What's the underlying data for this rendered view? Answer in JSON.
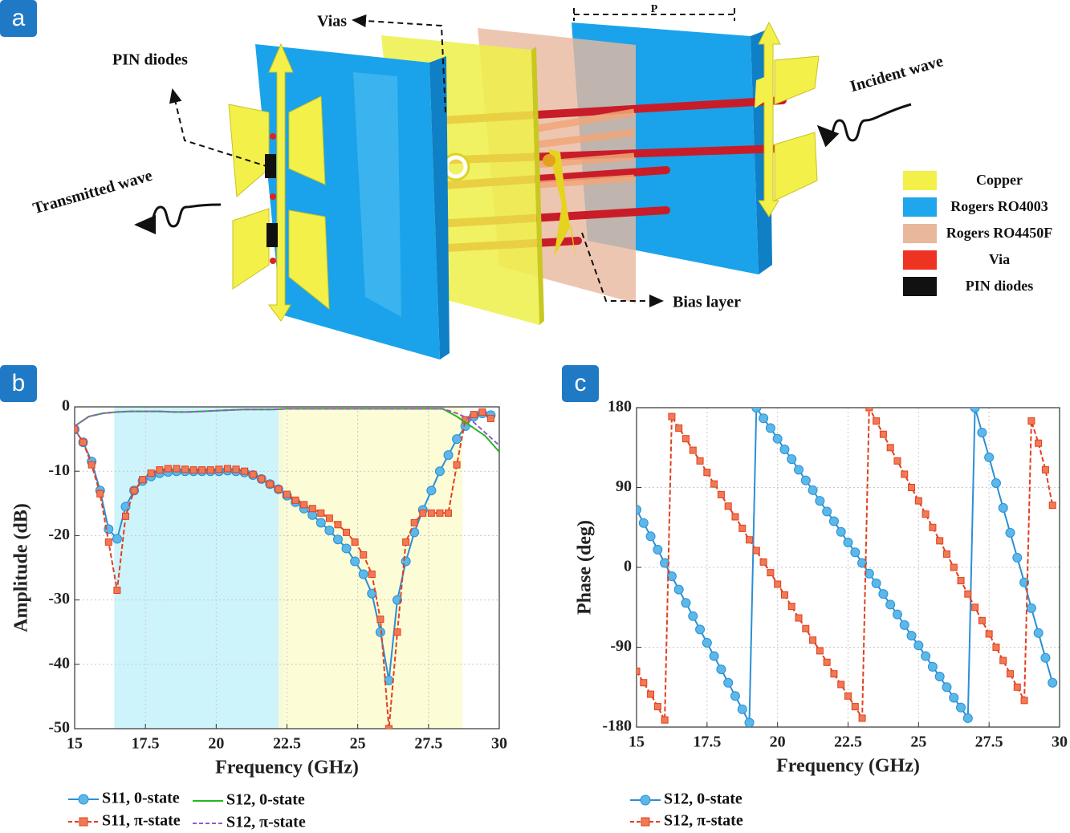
{
  "panel_labels": [
    "a",
    "b",
    "c"
  ],
  "diagram": {
    "labels": {
      "vias": "Vias",
      "period": "P",
      "pin_diodes": "PIN diodes",
      "incident": "Incident  wave",
      "transmitted": "Transmitted  wave",
      "bias": "Bias layer"
    },
    "legend": [
      {
        "label": "Copper",
        "color": "#f3f04a"
      },
      {
        "label": "Rogers RO4003",
        "color": "#1fa6ec"
      },
      {
        "label": "Rogers RO4450F",
        "color": "#e8b79c"
      },
      {
        "label": "Via",
        "color": "#ee3322"
      },
      {
        "label": "PIN diodes",
        "color": "#111111"
      }
    ]
  },
  "chart_data": [
    {
      "type": "line",
      "xlabel": "Frequency (GHz)",
      "ylabel": "Amplitude (dB)",
      "xlim": [
        15,
        30
      ],
      "ylim": [
        -50,
        0
      ],
      "xticks": [
        15,
        17.5,
        20,
        22.5,
        25,
        27.5,
        30
      ],
      "yticks": [
        -50,
        -40,
        -30,
        -20,
        -10,
        0
      ],
      "grid": true,
      "shaded_regions": [
        {
          "xlim": [
            16.4,
            22.4
          ],
          "color": "#c4f2fa"
        },
        {
          "xlim": [
            22.2,
            28.7
          ],
          "color": "#fbfbcf"
        }
      ],
      "series": [
        {
          "name": "S11, 0-state",
          "color": "#2b8fd6",
          "marker": "circle",
          "marker_fill": "#5bb8e8",
          "dash": false,
          "x": [
            15,
            15.3,
            15.6,
            15.9,
            16.2,
            16.5,
            16.8,
            17.1,
            17.4,
            17.7,
            18,
            18.3,
            18.6,
            18.9,
            19.2,
            19.5,
            19.8,
            20.1,
            20.4,
            20.7,
            21,
            21.3,
            21.6,
            21.9,
            22.2,
            22.5,
            22.8,
            23.1,
            23.4,
            23.7,
            24,
            24.3,
            24.6,
            24.9,
            25.2,
            25.5,
            25.8,
            26.1,
            26.4,
            26.7,
            27,
            27.3,
            27.6,
            27.9,
            28.2,
            28.5,
            28.8,
            29.1,
            29.4,
            29.7
          ],
          "values": [
            -3.5,
            -5.5,
            -8.5,
            -13,
            -19,
            -20.5,
            -15.5,
            -13,
            -11.5,
            -10.8,
            -10.3,
            -10.1,
            -10,
            -10,
            -10,
            -10,
            -10,
            -10,
            -9.9,
            -10,
            -10.2,
            -10.6,
            -11.2,
            -12,
            -12.8,
            -13.8,
            -14.8,
            -15.8,
            -16.8,
            -18,
            -19.2,
            -20.6,
            -22,
            -24,
            -26,
            -29,
            -35,
            -42.5,
            -30,
            -24,
            -19.5,
            -16,
            -13,
            -10,
            -7.5,
            -5,
            -3,
            -1.5,
            -1,
            -1.3
          ]
        },
        {
          "name": "S11, π-state",
          "color": "#e2401f",
          "marker": "square",
          "marker_fill": "#f07a55",
          "dash": true,
          "x": [
            15,
            15.3,
            15.6,
            15.9,
            16.2,
            16.5,
            16.8,
            17.1,
            17.4,
            17.7,
            18,
            18.3,
            18.6,
            18.9,
            19.2,
            19.5,
            19.8,
            20.1,
            20.4,
            20.7,
            21,
            21.3,
            21.6,
            21.9,
            22.2,
            22.5,
            22.8,
            23.1,
            23.4,
            23.7,
            24,
            24.3,
            24.6,
            24.9,
            25.2,
            25.5,
            25.8,
            26.1,
            26.4,
            26.7,
            27,
            27.3,
            27.6,
            27.9,
            28.2,
            28.5,
            28.8,
            29.1,
            29.4,
            29.7
          ],
          "values": [
            -3.5,
            -5.5,
            -9,
            -13.5,
            -21,
            -28.5,
            -17,
            -13,
            -11.3,
            -10.3,
            -9.8,
            -9.6,
            -9.6,
            -9.7,
            -9.8,
            -9.8,
            -9.8,
            -9.7,
            -9.6,
            -9.7,
            -10,
            -10.5,
            -11.2,
            -12,
            -12.8,
            -13.6,
            -14.5,
            -15.2,
            -15.8,
            -16.5,
            -17.3,
            -18.3,
            -19.5,
            -21,
            -23,
            -26,
            -33,
            -50,
            -35,
            -21,
            -18,
            -16.5,
            -16.5,
            -16.5,
            -16.5,
            -9,
            -2,
            -1.2,
            -0.8,
            -1.8
          ]
        },
        {
          "name": "S12, 0-state",
          "color": "#22b822",
          "marker": "none",
          "dash": false,
          "x": [
            15,
            15.5,
            16,
            16.5,
            17,
            17.5,
            18,
            18.5,
            19,
            19.5,
            20,
            20.5,
            21,
            21.5,
            22,
            22.5,
            23,
            23.5,
            24,
            24.5,
            25,
            25.5,
            26,
            26.5,
            27,
            27.5,
            28,
            28.5,
            29,
            29.5,
            30
          ],
          "values": [
            -3,
            -1.5,
            -1,
            -0.8,
            -0.7,
            -0.7,
            -0.7,
            -0.8,
            -0.8,
            -0.7,
            -0.6,
            -0.5,
            -0.4,
            -0.4,
            -0.4,
            -0.3,
            -0.3,
            -0.3,
            -0.3,
            -0.3,
            -0.3,
            -0.3,
            -0.3,
            -0.3,
            -0.3,
            -0.3,
            -0.3,
            -1.5,
            -3,
            -4.5,
            -7
          ]
        },
        {
          "name": "S12, π-state",
          "color": "#9a55c8",
          "marker": "none",
          "dash": true,
          "x": [
            15,
            15.5,
            16,
            16.5,
            17,
            17.5,
            18,
            18.5,
            19,
            19.5,
            20,
            20.5,
            21,
            21.5,
            22,
            22.5,
            23,
            23.5,
            24,
            24.5,
            25,
            25.5,
            26,
            26.5,
            27,
            27.5,
            28,
            28.5,
            29,
            29.5,
            30
          ],
          "values": [
            -3,
            -1.5,
            -1,
            -0.8,
            -0.7,
            -0.7,
            -0.7,
            -0.8,
            -0.8,
            -0.7,
            -0.6,
            -0.5,
            -0.4,
            -0.4,
            -0.4,
            -0.3,
            -0.3,
            -0.3,
            -0.3,
            -0.3,
            -0.3,
            -0.3,
            -0.3,
            -0.3,
            -0.3,
            -0.3,
            -0.3,
            -1,
            -2,
            -4,
            -6
          ]
        }
      ]
    },
    {
      "type": "line",
      "xlabel": "Frequency (GHz)",
      "ylabel": "Phase (deg)",
      "xlim": [
        15,
        30
      ],
      "ylim": [
        -180,
        180
      ],
      "xticks": [
        15,
        17.5,
        20,
        22.5,
        25,
        27.5,
        30
      ],
      "yticks": [
        -180,
        -90,
        0,
        90,
        180
      ],
      "grid": true,
      "series": [
        {
          "name": "S12, 0-state",
          "color": "#2b8fd6",
          "marker": "circle",
          "marker_fill": "#5bb8e8",
          "dash": false,
          "x": [
            15,
            15.25,
            15.5,
            15.75,
            16,
            16.25,
            16.5,
            16.75,
            17,
            17.25,
            17.5,
            17.75,
            18,
            18.25,
            18.5,
            18.75,
            19,
            19.25,
            19.5,
            19.75,
            20,
            20.25,
            20.5,
            20.75,
            21,
            21.25,
            21.5,
            21.75,
            22,
            22.25,
            22.5,
            22.75,
            23,
            23.25,
            23.5,
            23.75,
            24,
            24.25,
            24.5,
            24.75,
            25,
            25.25,
            25.5,
            25.75,
            26,
            26.25,
            26.5,
            26.75,
            27,
            27.25,
            27.5,
            27.75,
            28,
            28.25,
            28.5,
            28.75,
            29,
            29.25,
            29.5,
            29.75
          ],
          "values": [
            65,
            50,
            35,
            20,
            5,
            -10,
            -25,
            -40,
            -55,
            -70,
            -85,
            -100,
            -115,
            -130,
            -145,
            -160,
            -175,
            180,
            168,
            157,
            145,
            133,
            122,
            110,
            98,
            87,
            75,
            63,
            52,
            40,
            28,
            17,
            5,
            -7,
            -18,
            -30,
            -42,
            -53,
            -65,
            -77,
            -88,
            -100,
            -112,
            -123,
            -135,
            -147,
            -158,
            -170,
            180,
            152,
            124,
            95,
            67,
            39,
            11,
            -17,
            -46,
            -74,
            -102,
            -130
          ]
        },
        {
          "name": "S12, π-state",
          "color": "#e2401f",
          "marker": "square",
          "marker_fill": "#f07a55",
          "dash": true,
          "x": [
            15,
            15.25,
            15.5,
            15.75,
            16,
            16.25,
            16.5,
            16.75,
            17,
            17.25,
            17.5,
            17.75,
            18,
            18.25,
            18.5,
            18.75,
            19,
            19.25,
            19.5,
            19.75,
            20,
            20.25,
            20.5,
            20.75,
            21,
            21.25,
            21.5,
            21.75,
            22,
            22.25,
            22.5,
            22.75,
            23,
            23.25,
            23.5,
            23.75,
            24,
            24.25,
            24.5,
            24.75,
            25,
            25.25,
            25.5,
            25.75,
            26,
            26.25,
            26.5,
            26.75,
            27,
            27.25,
            27.5,
            27.75,
            28,
            28.25,
            28.5,
            28.75,
            29,
            29.25,
            29.5,
            29.75
          ],
          "values": [
            -117,
            -130,
            -143,
            -157,
            -172,
            170,
            157,
            145,
            132,
            120,
            107,
            94,
            82,
            69,
            57,
            44,
            31,
            19,
            6,
            -6,
            -19,
            -31,
            -44,
            -57,
            -69,
            -82,
            -94,
            -107,
            -120,
            -132,
            -145,
            -157,
            -170,
            180,
            165,
            150,
            135,
            120,
            105,
            90,
            75,
            60,
            45,
            30,
            15,
            0,
            -15,
            -30,
            -45,
            -60,
            -75,
            -90,
            -105,
            -120,
            -135,
            -150,
            165,
            140,
            110,
            70
          ]
        }
      ]
    }
  ]
}
